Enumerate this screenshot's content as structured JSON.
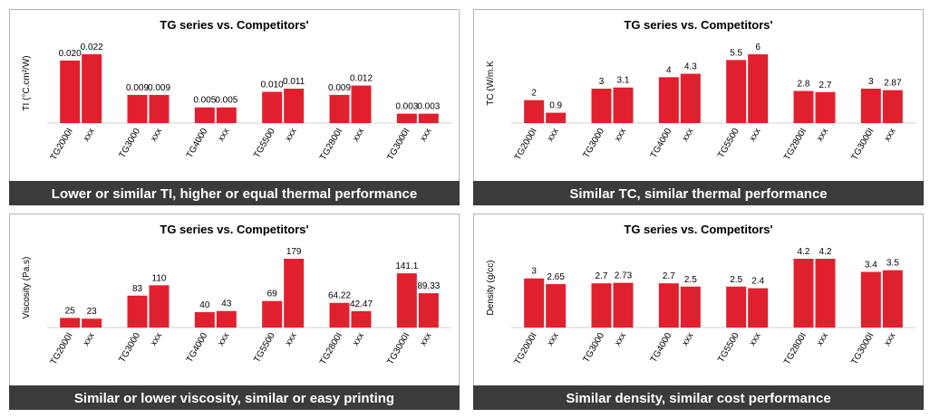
{
  "chart_data": [
    {
      "type": "bar",
      "title": "TG series vs. Competitors'",
      "y_label": "TI (°C.cm²/W)",
      "categories": [
        "TG2000I",
        "xxx",
        "TG3000",
        "xxx",
        "TG4000",
        "xxx",
        "TG5500",
        "xxx",
        "TG2800I",
        "xxx",
        "TG3000I",
        "xxx"
      ],
      "values": [
        0.02,
        0.022,
        0.009,
        0.009,
        0.005,
        0.005,
        0.01,
        0.011,
        0.009,
        0.012,
        0.003,
        0.003
      ],
      "value_labels": [
        "0.020",
        "0.022",
        "0.009",
        "0.009",
        "0.005",
        "0.005",
        "0.010",
        "0.011",
        "0.009",
        "0.012",
        "0.003",
        "0.003"
      ],
      "color": "#e0202e",
      "caption": "Lower or similar TI, higher or equal thermal performance"
    },
    {
      "type": "bar",
      "title": "TG series vs. Competitors'",
      "y_label": "TC (W/m.K",
      "categories": [
        "TG2000I",
        "xxx",
        "TG3000",
        "xxx",
        "TG4000",
        "xxx",
        "TG5500",
        "xxx",
        "TG2800I",
        "xxx",
        "TG3000I",
        "xxx"
      ],
      "values": [
        2,
        0.9,
        3,
        3.1,
        4,
        4.3,
        5.5,
        6,
        2.8,
        2.7,
        3,
        2.87
      ],
      "color": "#e0202e",
      "caption": "Similar TC, similar thermal performance"
    },
    {
      "type": "bar",
      "title": "TG series vs. Competitors'",
      "y_label": "Viscosity (Pa.s)",
      "categories": [
        "TG2000I",
        "xxx",
        "TG3000",
        "xxx",
        "TG4000",
        "xxx",
        "TG5500",
        "xxx",
        "TG2800I",
        "xxx",
        "TG3000I",
        "xxx"
      ],
      "values": [
        25,
        23,
        83,
        110,
        40,
        43,
        69,
        179,
        64.22,
        42.47,
        141.1,
        89.33
      ],
      "color": "#e0202e",
      "caption": "Similar  or lower viscosity, similar or easy printing"
    },
    {
      "type": "bar",
      "title": "TG series vs. Competitors'",
      "y_label": "Density (g/cc)",
      "categories": [
        "TG2000I",
        "xxx",
        "TG3000",
        "xxx",
        "TG4000",
        "xxx",
        "TG5500",
        "xxx",
        "TG2800I",
        "xxx",
        "TG3000I",
        "xxx"
      ],
      "values": [
        3,
        2.65,
        2.7,
        2.73,
        2.7,
        2.5,
        2.5,
        2.4,
        4.2,
        4.2,
        3.4,
        3.5
      ],
      "color": "#e0202e",
      "caption": "Similar density, similar cost performance"
    }
  ]
}
